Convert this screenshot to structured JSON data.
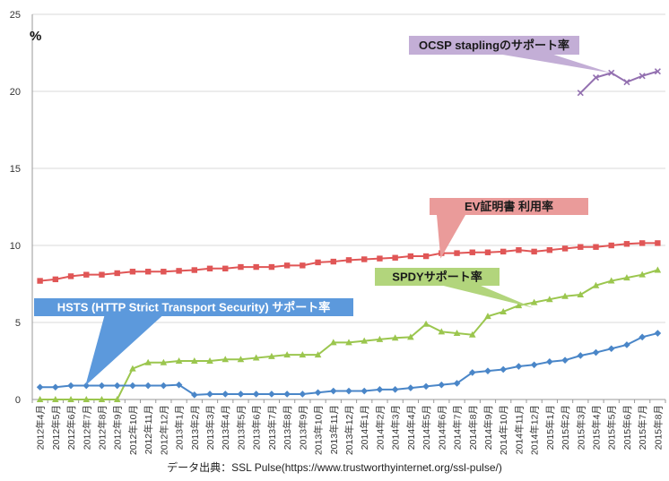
{
  "chart_data": {
    "type": "line",
    "unit_label": "%",
    "ylim": [
      0,
      25
    ],
    "yticks": [
      0,
      5,
      10,
      15,
      20,
      25
    ],
    "grid": true,
    "categories": [
      "2012年4月",
      "2012年5月",
      "2012年6月",
      "2012年7月",
      "2012年8月",
      "2012年9月",
      "2012年10月",
      "2012年11月",
      "2012年12月",
      "2013年1月",
      "2013年2月",
      "2013年3月",
      "2013年4月",
      "2013年5月",
      "2013年6月",
      "2013年7月",
      "2013年8月",
      "2013年9月",
      "2013年10月",
      "2013年11月",
      "2013年12月",
      "2014年1月",
      "2014年2月",
      "2014年3月",
      "2014年4月",
      "2014年5月",
      "2014年6月",
      "2014年7月",
      "2014年8月",
      "2014年9月",
      "2014年10月",
      "2014年11月",
      "2014年12月",
      "2015年1月",
      "2015年2月",
      "2015年3月",
      "2015年4月",
      "2015年5月",
      "2015年6月",
      "2015年7月",
      "2015年8月"
    ],
    "series": [
      {
        "key": "ev",
        "name": "EV証明書 利用率",
        "color": "#e05656",
        "marker": "square",
        "values": [
          7.7,
          7.8,
          8.0,
          8.1,
          8.1,
          8.2,
          8.3,
          8.3,
          8.3,
          8.35,
          8.4,
          8.5,
          8.5,
          8.6,
          8.6,
          8.6,
          8.7,
          8.7,
          8.9,
          8.95,
          9.05,
          9.1,
          9.15,
          9.2,
          9.3,
          9.3,
          9.5,
          9.5,
          9.55,
          9.55,
          9.6,
          9.7,
          9.6,
          9.7,
          9.8,
          9.9,
          9.9,
          10.0,
          10.1,
          10.15,
          10.15
        ]
      },
      {
        "key": "spdy",
        "name": "SPDYサポート率",
        "color": "#9bc64e",
        "marker": "triangle",
        "values": [
          0,
          0,
          0,
          0,
          0,
          0,
          2.0,
          2.4,
          2.4,
          2.5,
          2.5,
          2.5,
          2.6,
          2.6,
          2.7,
          2.8,
          2.9,
          2.9,
          2.9,
          3.7,
          3.7,
          3.8,
          3.9,
          4.0,
          4.05,
          4.9,
          4.4,
          4.3,
          4.2,
          5.4,
          5.7,
          6.1,
          6.3,
          6.5,
          6.7,
          6.8,
          7.4,
          7.7,
          7.9,
          8.1,
          8.4
        ]
      },
      {
        "key": "hsts",
        "name": "HSTS (HTTP Strict Transport Security) サポート率",
        "color": "#4a86c8",
        "marker": "diamond",
        "values": [
          0.8,
          0.8,
          0.9,
          0.9,
          0.9,
          0.9,
          0.9,
          0.9,
          0.9,
          0.95,
          0.3,
          0.35,
          0.35,
          0.35,
          0.35,
          0.35,
          0.35,
          0.35,
          0.45,
          0.55,
          0.55,
          0.55,
          0.65,
          0.65,
          0.75,
          0.85,
          0.95,
          1.05,
          1.75,
          1.85,
          1.95,
          2.15,
          2.25,
          2.45,
          2.55,
          2.85,
          3.05,
          3.3,
          3.55,
          4.05,
          4.3
        ]
      },
      {
        "key": "ocsp",
        "name": "OCSP staplingのサポート率",
        "color": "#9370b0",
        "marker": "x",
        "values": [
          null,
          null,
          null,
          null,
          null,
          null,
          null,
          null,
          null,
          null,
          null,
          null,
          null,
          null,
          null,
          null,
          null,
          null,
          null,
          null,
          null,
          null,
          null,
          null,
          null,
          null,
          null,
          null,
          null,
          null,
          null,
          null,
          null,
          null,
          null,
          19.9,
          20.9,
          21.2,
          20.6,
          21.0,
          21.3
        ]
      }
    ],
    "callouts": [
      {
        "key": "ocsp",
        "text": "OCSP staplingのサポート率",
        "bg": "#c3aed6",
        "target_index": 37
      },
      {
        "key": "ev",
        "text": "EV証明書  利用率",
        "bg": "#ea9b9a",
        "target_index": 26
      },
      {
        "key": "spdy",
        "text": "SPDYサポート率",
        "bg": "#b2d57c",
        "target_index": 32
      },
      {
        "key": "hsts",
        "text": "HSTS (HTTP Strict Transport Security) サポート率",
        "bg": "#5c99dc",
        "target_index": 3
      }
    ]
  },
  "footer": {
    "source": "データ出典：SSL Pulse(https://www.trustworthyinternet.org/ssl-pulse/)"
  }
}
